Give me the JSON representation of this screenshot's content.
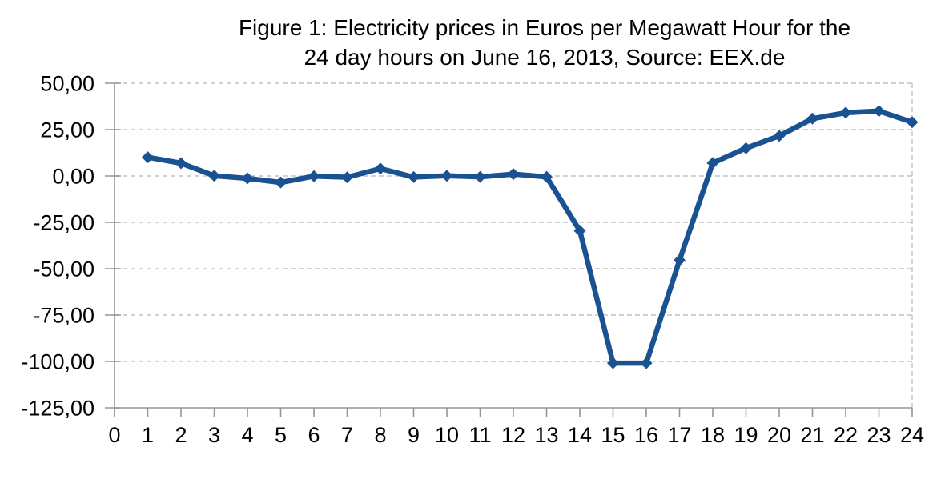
{
  "title": {
    "line1": "Figure 1: Electricity prices in Euros per Megawatt Hour for the",
    "line2": "24 day hours on June 16, 2013, Source: EEX.de"
  },
  "chart_data": {
    "type": "line",
    "title": "Figure 1: Electricity prices in Euros per Megawatt Hour for the 24 day hours on June 16, 2013, Source: EEX.de",
    "series": [
      {
        "name": "Electricity price (EUR/MWh)",
        "x": [
          1,
          2,
          3,
          4,
          5,
          6,
          7,
          8,
          9,
          10,
          11,
          12,
          13,
          14,
          15,
          16,
          17,
          18,
          19,
          20,
          21,
          22,
          23,
          24
        ],
        "values": [
          10.1,
          6.9,
          0.1,
          -1.3,
          -3.5,
          -0.1,
          -0.7,
          4.0,
          -0.6,
          0.1,
          -0.5,
          1.0,
          -0.5,
          -29.5,
          -100.9,
          -100.9,
          -45.4,
          7.0,
          15.0,
          21.6,
          30.9,
          34.1,
          35.0,
          29.0
        ]
      }
    ],
    "xlabel": "",
    "ylabel": "",
    "xlim": [
      0,
      24
    ],
    "ylim": [
      -125,
      50
    ],
    "x_tick_values": [
      0,
      1,
      2,
      3,
      4,
      5,
      6,
      7,
      8,
      9,
      10,
      11,
      12,
      13,
      14,
      15,
      16,
      17,
      18,
      19,
      20,
      21,
      22,
      23,
      24
    ],
    "x_tick_labels": [
      "0",
      "1",
      "2",
      "3",
      "4",
      "5",
      "6",
      "7",
      "8",
      "9",
      "10",
      "11",
      "12",
      "13",
      "14",
      "15",
      "16",
      "17",
      "18",
      "19",
      "20",
      "21",
      "22",
      "23",
      "24"
    ],
    "y_tick_values": [
      50,
      25,
      0,
      -25,
      -50,
      -75,
      -100,
      -125
    ],
    "y_tick_labels": [
      "50,00",
      "25,00",
      "0,00",
      "-25,00",
      "-50,00",
      "-75,00",
      "-100,00",
      "-125,00"
    ],
    "grid": "horizontal-dashed",
    "legend": "none",
    "marker": "diamond",
    "colors": {
      "line": "#1A5291",
      "marker": "#1A5291",
      "gridline": "#C2C2C2",
      "axis": "#959595",
      "tick": "#959595",
      "text": "#000000",
      "background": "#FFFFFF"
    }
  }
}
